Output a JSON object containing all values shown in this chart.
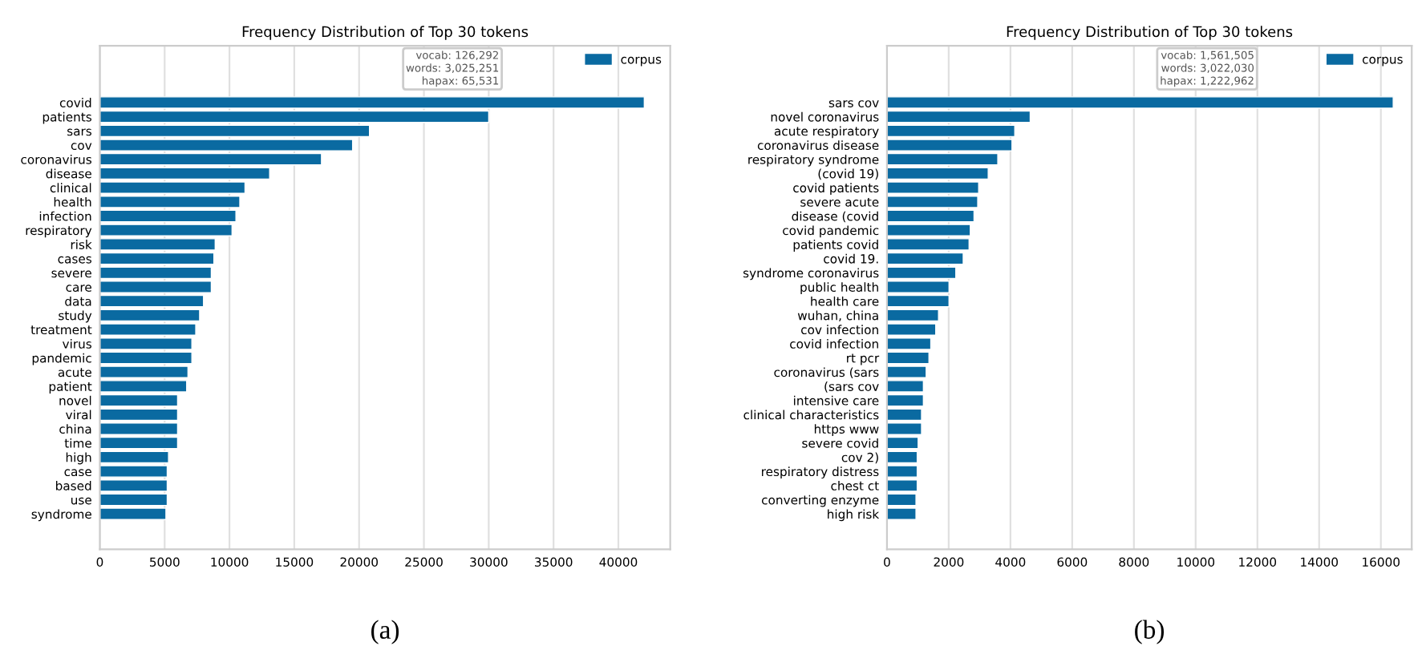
{
  "chart_data": [
    {
      "type": "bar",
      "orientation": "horizontal",
      "title": "Frequency Distribution of Top 30 tokens",
      "categories": [
        "covid",
        "patients",
        "sars",
        "cov",
        "coronavirus",
        "disease",
        "clinical",
        "health",
        "infection",
        "respiratory",
        "risk",
        "cases",
        "severe",
        "care",
        "data",
        "study",
        "treatment",
        "virus",
        "pandemic",
        "acute",
        "patient",
        "novel",
        "viral",
        "china",
        "time",
        "high",
        "case",
        "based",
        "use",
        "syndrome"
      ],
      "series": [
        {
          "name": "corpus",
          "color": "#0a6aa1",
          "values": [
            42000,
            30000,
            20800,
            19500,
            17100,
            13100,
            11200,
            10800,
            10500,
            10200,
            8900,
            8800,
            8600,
            8600,
            8000,
            7700,
            7400,
            7100,
            7100,
            6800,
            6700,
            6000,
            6000,
            6000,
            6000,
            5300,
            5200,
            5200,
            5200,
            5100
          ]
        }
      ],
      "xlim": [
        0,
        44000
      ],
      "xticks": [
        0,
        5000,
        10000,
        15000,
        20000,
        25000,
        30000,
        35000,
        40000
      ],
      "grid": "x",
      "legend": "top right",
      "annotations": [
        "vocab: 126,292\nwords: 3,025,251\nhapax: 65,531",
        "(a)"
      ]
    },
    {
      "type": "bar",
      "orientation": "horizontal",
      "title": "Frequency Distribution of Top 30 tokens",
      "categories": [
        "sars cov",
        "novel coronavirus",
        "acute respiratory",
        "coronavirus disease",
        "respiratory syndrome",
        "(covid 19)",
        "covid patients",
        "severe acute",
        "disease (covid",
        "covid pandemic",
        "patients covid",
        "covid 19.",
        "syndrome coronavirus",
        "public health",
        "health care",
        "wuhan, china",
        "cov infection",
        "covid infection",
        "rt pcr",
        "coronavirus (sars",
        "(sars cov",
        "intensive care",
        "clinical characteristics",
        "https www",
        "severe covid",
        "cov 2)",
        "respiratory distress",
        "chest ct",
        "converting enzyme",
        "high risk"
      ],
      "series": [
        {
          "name": "corpus",
          "color": "#0a6aa1",
          "values": [
            16400,
            4640,
            4140,
            4050,
            3590,
            3280,
            2970,
            2940,
            2820,
            2700,
            2660,
            2470,
            2230,
            2010,
            2010,
            1670,
            1580,
            1420,
            1360,
            1270,
            1180,
            1180,
            1120,
            1120,
            1010,
            980,
            980,
            980,
            940,
            940
          ]
        }
      ],
      "xlim": [
        0,
        17000
      ],
      "xticks": [
        0,
        2000,
        4000,
        6000,
        8000,
        10000,
        12000,
        14000,
        16000
      ],
      "grid": "x",
      "legend": "top right",
      "annotations": [
        "vocab: 1,561,505\nwords: 3,022,030\nhapax: 1,222,962",
        "(b)"
      ]
    }
  ]
}
